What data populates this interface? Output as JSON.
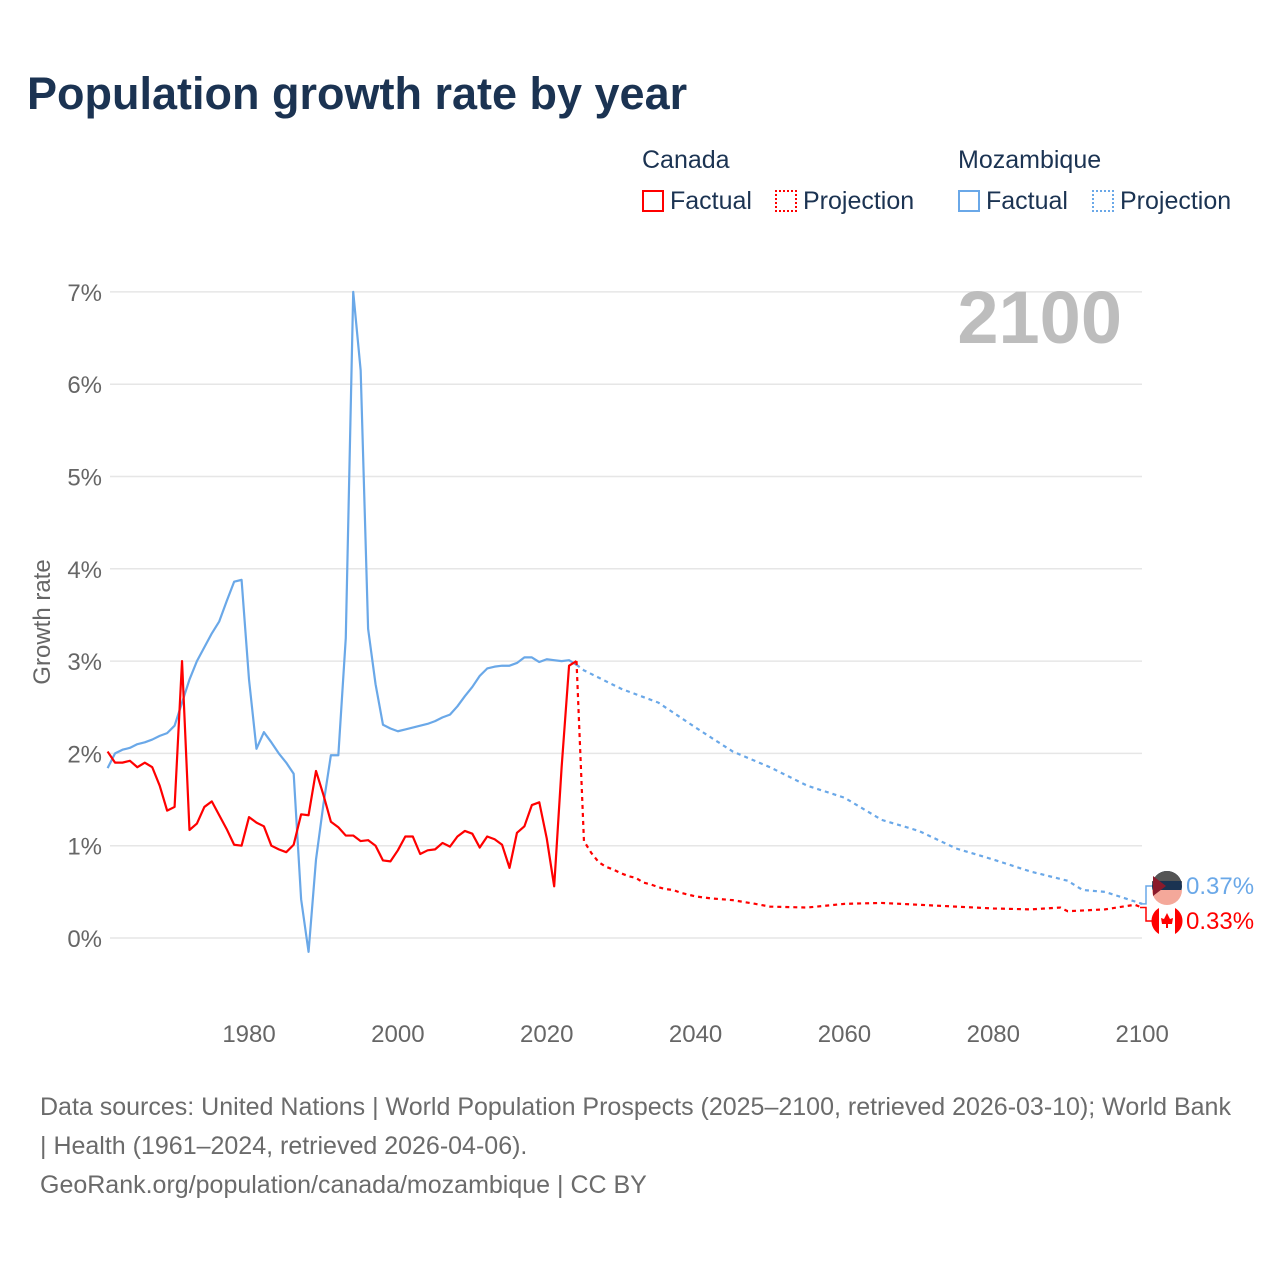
{
  "title": "Population growth rate by year",
  "legend": {
    "groups": [
      {
        "name": "Canada",
        "factual": "Factual",
        "projection": "Projection",
        "color": "#ff0000"
      },
      {
        "name": "Mozambique",
        "factual": "Factual",
        "projection": "Projection",
        "color": "#6aa8e8"
      }
    ]
  },
  "year_label": "2100",
  "footnote": {
    "line1": "Data sources: United Nations | World Population Prospects (2025–2100, retrieved 2026-03-10); World Bank | Health (1961–2024, retrieved 2026-04-06).",
    "line2": "GeoRank.org/population/canada/mozambique | CC BY"
  },
  "chart_data": {
    "type": "line",
    "title": "Population growth rate by year",
    "xlabel": "",
    "ylabel": "Growth rate",
    "xlim": [
      1961,
      2100
    ],
    "ylim": [
      -0.7,
      7.2
    ],
    "xticks": [
      1980,
      2000,
      2020,
      2040,
      2060,
      2080,
      2100
    ],
    "yticks": [
      0,
      1,
      2,
      3,
      4,
      5,
      6,
      7
    ],
    "ytick_labels": [
      "0%",
      "1%",
      "2%",
      "3%",
      "4%",
      "5%",
      "6%",
      "7%"
    ],
    "grid": true,
    "legend_position": "top-right",
    "end_labels": {
      "Mozambique": "0.37%",
      "Canada": "0.33%"
    },
    "series": [
      {
        "name": "Mozambique Factual",
        "color": "#6aa8e8",
        "dashed": false,
        "points": [
          [
            1961,
            1.84
          ],
          [
            1962,
            2.0
          ],
          [
            1963,
            2.04
          ],
          [
            1964,
            2.06
          ],
          [
            1965,
            2.1
          ],
          [
            1966,
            2.12
          ],
          [
            1967,
            2.15
          ],
          [
            1968,
            2.19
          ],
          [
            1969,
            2.22
          ],
          [
            1970,
            2.3
          ],
          [
            1971,
            2.55
          ],
          [
            1972,
            2.8
          ],
          [
            1973,
            3.0
          ],
          [
            1974,
            3.15
          ],
          [
            1975,
            3.3
          ],
          [
            1976,
            3.43
          ],
          [
            1977,
            3.65
          ],
          [
            1978,
            3.86
          ],
          [
            1979,
            3.88
          ],
          [
            1980,
            2.8
          ],
          [
            1981,
            2.05
          ],
          [
            1982,
            2.23
          ],
          [
            1983,
            2.12
          ],
          [
            1984,
            2.0
          ],
          [
            1985,
            1.9
          ],
          [
            1986,
            1.78
          ],
          [
            1987,
            0.42
          ],
          [
            1988,
            -0.15
          ],
          [
            1989,
            0.85
          ],
          [
            1990,
            1.45
          ],
          [
            1991,
            1.98
          ],
          [
            1992,
            1.98
          ],
          [
            1993,
            3.25
          ],
          [
            1994,
            7.0
          ],
          [
            1995,
            6.15
          ],
          [
            1996,
            3.35
          ],
          [
            1997,
            2.75
          ],
          [
            1998,
            2.31
          ],
          [
            1999,
            2.27
          ],
          [
            2000,
            2.24
          ],
          [
            2001,
            2.26
          ],
          [
            2002,
            2.28
          ],
          [
            2003,
            2.3
          ],
          [
            2004,
            2.32
          ],
          [
            2005,
            2.35
          ],
          [
            2006,
            2.39
          ],
          [
            2007,
            2.42
          ],
          [
            2008,
            2.51
          ],
          [
            2009,
            2.62
          ],
          [
            2010,
            2.72
          ],
          [
            2011,
            2.84
          ],
          [
            2012,
            2.92
          ],
          [
            2013,
            2.94
          ],
          [
            2014,
            2.95
          ],
          [
            2015,
            2.95
          ],
          [
            2016,
            2.98
          ],
          [
            2017,
            3.04
          ],
          [
            2018,
            3.04
          ],
          [
            2019,
            2.99
          ],
          [
            2020,
            3.02
          ],
          [
            2021,
            3.01
          ],
          [
            2022,
            3.0
          ],
          [
            2023,
            3.01
          ],
          [
            2024,
            2.96
          ]
        ]
      },
      {
        "name": "Mozambique Projection",
        "color": "#6aa8e8",
        "dashed": true,
        "points": [
          [
            2024,
            2.96
          ],
          [
            2025,
            2.9
          ],
          [
            2030,
            2.7
          ],
          [
            2035,
            2.55
          ],
          [
            2040,
            2.28
          ],
          [
            2045,
            2.02
          ],
          [
            2050,
            1.85
          ],
          [
            2055,
            1.65
          ],
          [
            2060,
            1.52
          ],
          [
            2065,
            1.28
          ],
          [
            2070,
            1.16
          ],
          [
            2075,
            0.97
          ],
          [
            2080,
            0.85
          ],
          [
            2085,
            0.72
          ],
          [
            2090,
            0.62
          ],
          [
            2092,
            0.52
          ],
          [
            2095,
            0.5
          ],
          [
            2100,
            0.37
          ]
        ]
      },
      {
        "name": "Canada Factual",
        "color": "#ff0000",
        "dashed": false,
        "points": [
          [
            1961,
            2.02
          ],
          [
            1962,
            1.9
          ],
          [
            1963,
            1.9
          ],
          [
            1964,
            1.92
          ],
          [
            1965,
            1.85
          ],
          [
            1966,
            1.9
          ],
          [
            1967,
            1.85
          ],
          [
            1968,
            1.65
          ],
          [
            1969,
            1.38
          ],
          [
            1970,
            1.42
          ],
          [
            1971,
            3.0
          ],
          [
            1972,
            1.17
          ],
          [
            1973,
            1.24
          ],
          [
            1974,
            1.42
          ],
          [
            1975,
            1.48
          ],
          [
            1976,
            1.33
          ],
          [
            1977,
            1.18
          ],
          [
            1978,
            1.01
          ],
          [
            1979,
            1.0
          ],
          [
            1980,
            1.31
          ],
          [
            1981,
            1.25
          ],
          [
            1982,
            1.21
          ],
          [
            1983,
            1.0
          ],
          [
            1984,
            0.96
          ],
          [
            1985,
            0.93
          ],
          [
            1986,
            1.01
          ],
          [
            1987,
            1.34
          ],
          [
            1988,
            1.33
          ],
          [
            1989,
            1.81
          ],
          [
            1990,
            1.55
          ],
          [
            1991,
            1.26
          ],
          [
            1992,
            1.2
          ],
          [
            1993,
            1.11
          ],
          [
            1994,
            1.11
          ],
          [
            1995,
            1.05
          ],
          [
            1996,
            1.06
          ],
          [
            1997,
            1.0
          ],
          [
            1998,
            0.84
          ],
          [
            1999,
            0.83
          ],
          [
            2000,
            0.95
          ],
          [
            2001,
            1.1
          ],
          [
            2002,
            1.1
          ],
          [
            2003,
            0.91
          ],
          [
            2004,
            0.95
          ],
          [
            2005,
            0.96
          ],
          [
            2006,
            1.03
          ],
          [
            2007,
            0.99
          ],
          [
            2008,
            1.1
          ],
          [
            2009,
            1.16
          ],
          [
            2010,
            1.13
          ],
          [
            2011,
            0.98
          ],
          [
            2012,
            1.1
          ],
          [
            2013,
            1.07
          ],
          [
            2014,
            1.01
          ],
          [
            2015,
            0.76
          ],
          [
            2016,
            1.14
          ],
          [
            2017,
            1.21
          ],
          [
            2018,
            1.44
          ],
          [
            2019,
            1.47
          ],
          [
            2020,
            1.08
          ],
          [
            2021,
            0.56
          ],
          [
            2022,
            1.85
          ],
          [
            2023,
            2.95
          ],
          [
            2024,
            3.0
          ]
        ]
      },
      {
        "name": "Canada Projection",
        "color": "#ff0000",
        "dashed": true,
        "points": [
          [
            2024,
            3.0
          ],
          [
            2025,
            1.05
          ],
          [
            2026,
            0.92
          ],
          [
            2027,
            0.82
          ],
          [
            2028,
            0.77
          ],
          [
            2029,
            0.74
          ],
          [
            2030,
            0.7
          ],
          [
            2031,
            0.67
          ],
          [
            2032,
            0.65
          ],
          [
            2033,
            0.6
          ],
          [
            2034,
            0.58
          ],
          [
            2035,
            0.55
          ],
          [
            2036,
            0.53
          ],
          [
            2037,
            0.52
          ],
          [
            2038,
            0.49
          ],
          [
            2039,
            0.47
          ],
          [
            2040,
            0.45
          ],
          [
            2042,
            0.43
          ],
          [
            2045,
            0.41
          ],
          [
            2048,
            0.37
          ],
          [
            2050,
            0.34
          ],
          [
            2055,
            0.33
          ],
          [
            2060,
            0.37
          ],
          [
            2065,
            0.38
          ],
          [
            2070,
            0.36
          ],
          [
            2075,
            0.34
          ],
          [
            2080,
            0.32
          ],
          [
            2085,
            0.31
          ],
          [
            2089,
            0.33
          ],
          [
            2090,
            0.29
          ],
          [
            2095,
            0.31
          ],
          [
            2099,
            0.36
          ],
          [
            2100,
            0.33
          ]
        ]
      }
    ]
  }
}
